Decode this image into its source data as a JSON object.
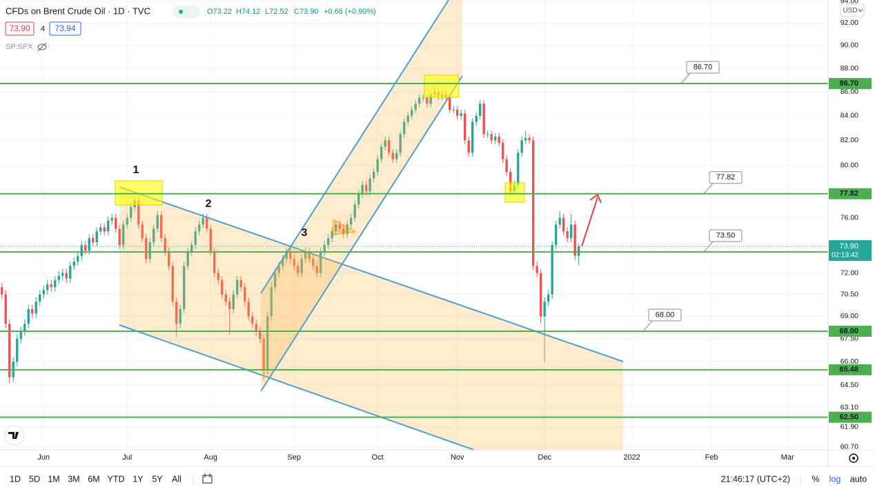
{
  "header": {
    "title": "CFDs on Brent Crude Oil · 1D · TVC",
    "ohlc": [
      "O73.22",
      "H74.12",
      "L72.52",
      "C73.90",
      "+0.66 (+0.90%)"
    ],
    "bid": "73.90",
    "spread": "4",
    "ask": "73.94",
    "compare": "SP:SPX",
    "currency": "USD"
  },
  "chart_data": {
    "type": "candlestick",
    "up_color": "#26a69a",
    "down_color": "#ef5350",
    "level_color": "#4caf50",
    "grid": true,
    "log_scale": true,
    "xlim": [
      -0.5,
      217.7
    ],
    "ylim": [
      60.53,
      94.1
    ],
    "xticks": [
      {
        "value": 11,
        "label": "Jun"
      },
      {
        "value": 33,
        "label": "Jul"
      },
      {
        "value": 55,
        "label": "Aug"
      },
      {
        "value": 77,
        "label": "Sep"
      },
      {
        "value": 99,
        "label": "Oct"
      },
      {
        "value": 120,
        "label": "Nov"
      },
      {
        "value": 143,
        "label": "Dec"
      },
      {
        "value": 166,
        "label": "2022"
      },
      {
        "value": 187,
        "label": "Feb"
      },
      {
        "value": 207,
        "label": "Mar"
      }
    ],
    "yticks": [
      {
        "value": 94,
        "label": "94.00"
      },
      {
        "value": 92,
        "label": "92.00"
      },
      {
        "value": 90,
        "label": "90.00"
      },
      {
        "value": 88,
        "label": "88.00"
      },
      {
        "value": 86,
        "label": "86.00"
      },
      {
        "value": 84,
        "label": "84.00"
      },
      {
        "value": 82,
        "label": "82.00"
      },
      {
        "value": 80,
        "label": "80.00"
      },
      {
        "value": 76,
        "label": "76.00"
      },
      {
        "value": 72,
        "label": "72.00"
      },
      {
        "value": 70.5,
        "label": "70.50"
      },
      {
        "value": 69,
        "label": "69.00"
      },
      {
        "value": 67.5,
        "label": "67.50"
      },
      {
        "value": 66,
        "label": "66.00"
      },
      {
        "value": 64.5,
        "label": "64.50"
      },
      {
        "value": 63.1,
        "label": "63.10"
      },
      {
        "value": 61.9,
        "label": "61.90"
      },
      {
        "value": 60.7,
        "label": "60.70"
      }
    ],
    "levels": [
      {
        "value": 86.7,
        "label": "86.70",
        "callout": true
      },
      {
        "value": 77.82,
        "label": "77.82",
        "callout": true
      },
      {
        "value": 73.5,
        "label": "73.50",
        "callout": true
      },
      {
        "value": 68,
        "label": "68.00",
        "callout": true
      },
      {
        "value": 65.48,
        "label": "65.48",
        "callout": false
      },
      {
        "value": 62.5,
        "label": "62.50",
        "callout": false
      }
    ],
    "last_price": {
      "value": 73.9,
      "label": "73.90"
    },
    "countdown": "02:13:42",
    "annotations": [
      "1",
      "2",
      "3"
    ],
    "open": [
      71.0,
      70.5,
      68.5,
      65.0,
      66.0,
      67.5,
      68.0,
      68.5,
      69.5,
      69.2,
      70.0,
      70.5,
      70.8,
      71.2,
      71.0,
      71.5,
      71.8,
      72.0,
      71.6,
      72.5,
      72.8,
      73.2,
      74.0,
      73.6,
      74.5,
      74.2,
      75.0,
      75.3,
      75.0,
      75.8,
      76.0,
      75.2,
      74.0,
      75.5,
      76.0,
      76.8,
      77.3,
      75.5,
      74.5,
      73.0,
      74.2,
      75.2,
      76.2,
      74.5,
      73.5,
      72.5,
      70.0,
      68.5,
      69.5,
      72.5,
      73.5,
      74.0,
      75.0,
      75.5,
      76.0,
      75.2,
      73.5,
      72.0,
      71.5,
      70.5,
      70.0,
      69.5,
      70.5,
      71.5,
      71.0,
      70.0,
      69.0,
      68.5,
      68.0,
      67.5,
      65.5,
      69.0,
      71.0,
      72.0,
      72.5,
      73.0,
      73.5,
      73.0,
      72.5,
      72.0,
      73.0,
      73.5,
      73.0,
      72.5,
      72.0,
      73.5,
      74.0,
      74.5,
      75.0,
      75.5,
      75.2,
      74.8,
      75.5,
      76.0,
      77.0,
      77.8,
      78.5,
      78.0,
      79.0,
      79.5,
      80.5,
      81.5,
      82.0,
      81.0,
      80.5,
      81.0,
      82.5,
      83.5,
      84.0,
      84.5,
      85.0,
      85.5,
      85.5,
      85.0,
      85.8,
      86.0,
      85.6,
      85.8,
      85.5,
      84.5,
      84.5,
      84.0,
      84.2,
      82.0,
      81.0,
      83.5,
      84.0,
      85.0,
      82.5,
      82.5,
      82.0,
      82.3,
      81.8,
      80.5,
      79.5,
      78.0,
      78.5,
      81.0,
      82.0,
      82.2,
      82.0,
      72.5,
      72.0,
      69.0,
      70.0,
      70.5,
      74.0,
      75.5,
      76.0,
      75.0,
      74.5,
      75.5,
      73.22
    ],
    "high": [
      71.3,
      70.8,
      68.8,
      66.3,
      67.8,
      68.3,
      68.8,
      69.8,
      69.8,
      70.3,
      70.8,
      71.1,
      71.5,
      71.5,
      71.8,
      72.1,
      72.3,
      72.3,
      72.8,
      73.1,
      73.5,
      74.3,
      74.3,
      74.8,
      74.8,
      75.3,
      75.6,
      75.6,
      76.1,
      76.3,
      76.3,
      75.5,
      75.8,
      76.3,
      77.1,
      77.6,
      77.6,
      75.8,
      74.8,
      74.5,
      75.5,
      76.5,
      76.5,
      74.8,
      73.8,
      72.8,
      70.3,
      69.8,
      72.8,
      73.8,
      74.3,
      75.3,
      75.8,
      76.3,
      76.3,
      75.5,
      73.8,
      72.3,
      71.8,
      70.8,
      70.3,
      70.8,
      71.8,
      71.8,
      71.3,
      70.3,
      69.3,
      68.8,
      68.3,
      67.8,
      69.3,
      71.3,
      72.3,
      72.8,
      73.3,
      73.8,
      73.8,
      73.3,
      72.8,
      73.3,
      73.8,
      73.8,
      73.3,
      72.8,
      73.8,
      74.3,
      74.8,
      75.3,
      75.8,
      75.8,
      75.5,
      75.8,
      76.3,
      77.3,
      78.1,
      78.8,
      78.8,
      79.3,
      79.8,
      80.8,
      81.8,
      82.3,
      82.3,
      81.3,
      81.3,
      82.8,
      83.8,
      84.3,
      84.8,
      85.3,
      85.8,
      85.8,
      85.8,
      86.1,
      86.5,
      86.3,
      86.1,
      86.1,
      85.8,
      84.8,
      84.8,
      84.5,
      84.5,
      82.3,
      83.8,
      84.3,
      85.3,
      85.3,
      82.8,
      82.8,
      82.6,
      82.6,
      82.1,
      80.8,
      79.8,
      78.8,
      81.3,
      82.3,
      82.8,
      82.5,
      82.3,
      72.8,
      72.3,
      70.3,
      70.8,
      74.3,
      75.8,
      76.5,
      76.3,
      75.3,
      76.3,
      75.8,
      74.12
    ],
    "low": [
      70.2,
      68.2,
      64.6,
      64.7,
      65.7,
      67.2,
      67.7,
      68.2,
      68.9,
      68.9,
      69.7,
      70.2,
      70.5,
      70.7,
      70.7,
      71.2,
      71.5,
      71.3,
      71.3,
      72.2,
      72.5,
      72.9,
      73.3,
      73.3,
      73.9,
      73.9,
      74.7,
      74.7,
      74.7,
      75.5,
      74.9,
      73.7,
      73.7,
      75.2,
      75.7,
      76.5,
      75.2,
      74.2,
      72.7,
      72.7,
      73.9,
      74.9,
      74.2,
      73.2,
      72.2,
      69.7,
      67.6,
      68.2,
      69.2,
      72.2,
      73.2,
      73.7,
      74.7,
      75.2,
      74.9,
      73.2,
      71.7,
      71.2,
      70.2,
      69.7,
      67.8,
      69.2,
      70.2,
      70.7,
      69.7,
      68.7,
      68.2,
      67.7,
      67.2,
      64.8,
      65.2,
      68.7,
      70.7,
      71.7,
      72.2,
      72.7,
      72.7,
      72.2,
      71.7,
      71.7,
      72.7,
      72.7,
      72.2,
      71.7,
      71.7,
      73.2,
      73.7,
      74.2,
      74.7,
      74.9,
      74.5,
      74.5,
      75.2,
      75.7,
      76.7,
      77.5,
      77.7,
      77.7,
      78.7,
      79.2,
      80.2,
      81.2,
      80.7,
      80.2,
      80.2,
      80.7,
      82.2,
      83.2,
      83.7,
      84.2,
      84.7,
      85.2,
      84.7,
      84.7,
      85.5,
      85.3,
      85.3,
      85.2,
      84.2,
      84.2,
      83.7,
      83.7,
      81.7,
      80.7,
      80.7,
      83.2,
      83.7,
      82.2,
      82.2,
      81.7,
      81.7,
      81.5,
      80.2,
      79.2,
      77.7,
      77.7,
      78.2,
      80.7,
      81.7,
      81.7,
      72.2,
      71.7,
      68.5,
      66.0,
      69.7,
      70.2,
      73.7,
      75.2,
      74.7,
      74.2,
      74.2,
      72.9,
      72.52
    ],
    "close": [
      70.5,
      68.5,
      65.0,
      66.0,
      67.5,
      68.0,
      68.5,
      69.5,
      69.2,
      70.0,
      70.5,
      70.8,
      71.2,
      71.0,
      71.5,
      71.8,
      72.0,
      71.6,
      72.5,
      72.8,
      73.2,
      74.0,
      73.6,
      74.5,
      74.2,
      75.0,
      75.3,
      75.0,
      75.8,
      76.0,
      75.2,
      74.0,
      75.5,
      76.0,
      76.8,
      77.3,
      75.5,
      74.5,
      73.0,
      74.2,
      75.2,
      76.2,
      74.5,
      73.5,
      72.5,
      70.0,
      68.5,
      69.5,
      72.5,
      73.5,
      74.0,
      75.0,
      75.5,
      76.0,
      75.2,
      73.5,
      72.0,
      71.5,
      70.5,
      70.0,
      69.5,
      70.5,
      71.5,
      71.0,
      70.0,
      69.0,
      68.5,
      68.0,
      67.5,
      65.5,
      69.0,
      71.0,
      72.0,
      72.5,
      73.0,
      73.5,
      73.0,
      72.5,
      72.0,
      73.0,
      73.5,
      73.0,
      72.5,
      72.0,
      73.5,
      74.0,
      74.5,
      75.0,
      75.5,
      75.2,
      74.8,
      75.5,
      76.0,
      77.0,
      77.8,
      78.5,
      78.0,
      79.0,
      79.5,
      80.5,
      81.5,
      82.0,
      81.0,
      80.5,
      81.0,
      82.5,
      83.5,
      84.0,
      84.5,
      85.0,
      85.5,
      85.5,
      85.0,
      85.8,
      86.0,
      85.6,
      85.8,
      85.5,
      84.5,
      84.5,
      84.0,
      84.2,
      82.0,
      81.0,
      83.5,
      84.0,
      85.0,
      82.5,
      82.5,
      82.0,
      82.3,
      81.8,
      80.5,
      79.5,
      78.0,
      78.5,
      81.0,
      82.0,
      82.2,
      82.0,
      72.5,
      72.0,
      69.0,
      70.0,
      70.5,
      74.0,
      75.5,
      76.0,
      75.0,
      74.5,
      75.5,
      73.22,
      73.9
    ]
  },
  "toolbar": {
    "ranges": [
      "1D",
      "5D",
      "1M",
      "3M",
      "6M",
      "YTD",
      "1Y",
      "5Y",
      "All"
    ],
    "clock": "21:46:17 (UTC+2)",
    "percent": "%",
    "log": "log",
    "auto": "auto"
  }
}
